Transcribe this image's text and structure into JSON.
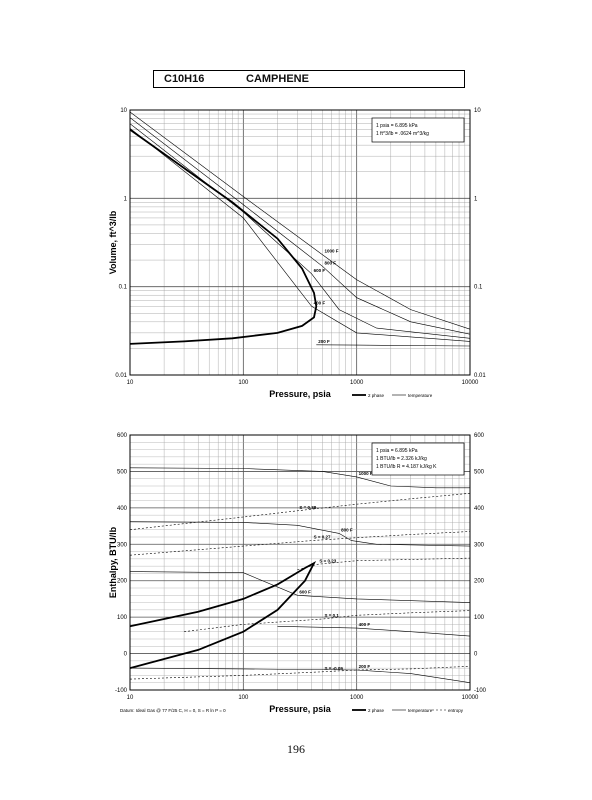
{
  "header": {
    "formula": "C10H16",
    "name": "CAMPHENE"
  },
  "page_number": "196",
  "chart_data": [
    {
      "type": "line",
      "id": "volume",
      "xlabel": "Pressure,  psia",
      "ylabel": "Volume, ft^3/lb",
      "xscale": "log",
      "yscale": "log",
      "xlim": [
        10,
        10000
      ],
      "ylim": [
        0.01,
        10
      ],
      "x_ticks": [
        "10",
        "100",
        "1000",
        "10000"
      ],
      "y_ticks": [
        "0.01",
        "0.1",
        "1",
        "10"
      ],
      "grid": true,
      "notes": [
        "1 psia  =  6.895 kPa",
        "1 ft^3/lb  =  .0624 m^3/kg"
      ],
      "legend": [
        "2 phase",
        "temperature"
      ],
      "legend_position": "bottom-right",
      "series": [
        {
          "label": "",
          "kind": "two-phase",
          "x": [
            10,
            30,
            80,
            200,
            330,
            420,
            440,
            420,
            330,
            200,
            80,
            30,
            10
          ],
          "y": [
            6,
            2.2,
            0.9,
            0.35,
            0.16,
            0.085,
            0.06,
            0.045,
            0.036,
            0.03,
            0.026,
            0.024,
            0.0225
          ]
        },
        {
          "label": "1000 F",
          "kind": "isotherm",
          "x": [
            10,
            100,
            500,
            1000,
            3000,
            10000
          ],
          "y": [
            9.5,
            1.05,
            0.23,
            0.12,
            0.055,
            0.033
          ]
        },
        {
          "label": "800 F",
          "kind": "isotherm",
          "x": [
            10,
            100,
            500,
            1000,
            3000,
            10000
          ],
          "y": [
            8.2,
            0.85,
            0.17,
            0.075,
            0.04,
            0.029
          ]
        },
        {
          "label": "600 F",
          "kind": "isotherm",
          "x": [
            10,
            100,
            400,
            700,
            1500,
            10000
          ],
          "y": [
            7,
            0.7,
            0.14,
            0.055,
            0.034,
            0.026
          ]
        },
        {
          "label": "400 F",
          "kind": "isotherm",
          "x": [
            10,
            100,
            400,
            1000,
            3000,
            10000
          ],
          "y": [
            6.2,
            0.6,
            0.06,
            0.03,
            0.027,
            0.024
          ]
        },
        {
          "label": "200 F",
          "kind": "isotherm",
          "x": [
            440,
            1000,
            10000
          ],
          "y": [
            0.022,
            0.0218,
            0.0213
          ]
        }
      ]
    },
    {
      "type": "line",
      "id": "enthalpy",
      "xlabel": "Pressure,  psia",
      "ylabel": "Enthalpy, BTU/lb",
      "xscale": "log",
      "yscale": "linear",
      "xlim": [
        10,
        10000
      ],
      "ylim": [
        -100,
        600
      ],
      "x_ticks": [
        "10",
        "100",
        "1000",
        "10000"
      ],
      "y_ticks": [
        "-100",
        "0",
        "100",
        "200",
        "300",
        "400",
        "500",
        "600"
      ],
      "grid": true,
      "notes": [
        "1 psia  =  6.895 kPa",
        "1 BTU/lb  =  2.326 kJ/kg",
        "1 BTU/lb R  =  4.187 kJ/kg K"
      ],
      "datum": "Datum: Ideal Gas @ 77 F/25 C,  H = 0,  S = R ln P = 0",
      "legend": [
        "2 phase",
        "temperature",
        "entropy"
      ],
      "legend_position": "bottom-right",
      "series": [
        {
          "label": "",
          "kind": "two-phase",
          "x": [
            10,
            40,
            100,
            200,
            350,
            420,
            350,
            200,
            100,
            40,
            10
          ],
          "y": [
            75,
            115,
            150,
            190,
            235,
            248,
            200,
            120,
            60,
            10,
            -40
          ]
        },
        {
          "label": "1000 F",
          "kind": "isotherm",
          "x": [
            10,
            100,
            500,
            1000,
            2000,
            5000,
            10000
          ],
          "y": [
            510,
            508,
            500,
            485,
            460,
            455,
            455
          ]
        },
        {
          "label": "800 F",
          "kind": "isotherm",
          "x": [
            10,
            100,
            300,
            700,
            900,
            1500,
            10000
          ],
          "y": [
            362,
            360,
            352,
            330,
            310,
            300,
            295
          ]
        },
        {
          "label": "600 F",
          "kind": "isotherm",
          "x": [
            10,
            100,
            300,
            1000,
            10000
          ],
          "y": [
            225,
            222,
            160,
            150,
            140
          ]
        },
        {
          "label": "400 F",
          "kind": "isotherm",
          "x": [
            200,
            1000,
            3000,
            10000
          ],
          "y": [
            75,
            70,
            60,
            48
          ]
        },
        {
          "label": "200 F",
          "kind": "isotherm",
          "x": [
            10,
            100,
            1000,
            3000,
            10000
          ],
          "y": [
            -40,
            -42,
            -45,
            -55,
            -80
          ]
        },
        {
          "label": "S = 0.38",
          "kind": "isentrope",
          "x": [
            10,
            100,
            300,
            1000,
            3000,
            10000
          ],
          "y": [
            340,
            375,
            392,
            410,
            425,
            440
          ]
        },
        {
          "label": "S = 0.27",
          "kind": "isentrope",
          "x": [
            10,
            100,
            400,
            1000,
            3000,
            10000
          ],
          "y": [
            270,
            295,
            310,
            318,
            327,
            335
          ]
        },
        {
          "label": "S = 0.23",
          "kind": "isentrope",
          "x": [
            300,
            450,
            1000,
            10000
          ],
          "y": [
            230,
            245,
            255,
            262
          ]
        },
        {
          "label": "S = 0.1",
          "kind": "isentrope",
          "x": [
            30,
            100,
            500,
            1000,
            3000,
            10000
          ],
          "y": [
            60,
            80,
            95,
            105,
            112,
            118
          ]
        },
        {
          "label": "S = -0.09",
          "kind": "isentrope",
          "x": [
            10,
            100,
            500,
            1000,
            3000,
            10000
          ],
          "y": [
            -70,
            -60,
            -50,
            -45,
            -42,
            -35
          ]
        }
      ]
    }
  ]
}
